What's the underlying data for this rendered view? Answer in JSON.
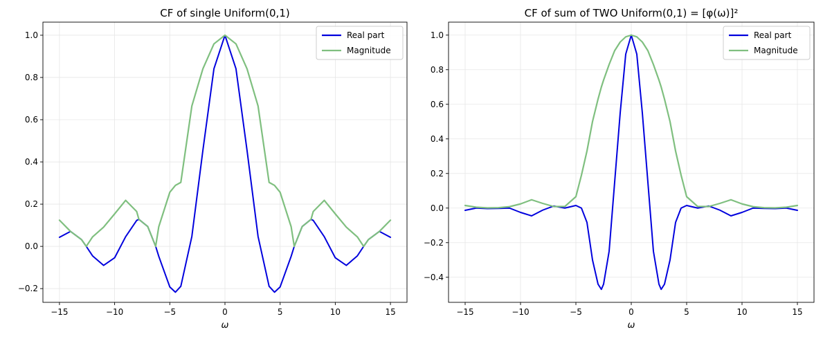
{
  "chart_data": [
    {
      "type": "line",
      "title": "CF of single Uniform(0,1)",
      "xlabel": "ω",
      "ylabel": "",
      "xlim": [
        -16.5,
        16.5
      ],
      "ylim": [
        -0.265,
        1.062
      ],
      "xticks": [
        -15,
        -10,
        -5,
        0,
        5,
        10,
        15
      ],
      "xtick_labels": [
        "−15",
        "−10",
        "−5",
        "0",
        "5",
        "10",
        "15"
      ],
      "yticks": [
        -0.2,
        0,
        0.2,
        0.4,
        0.6,
        0.8,
        1.0
      ],
      "ytick_labels": [
        "−0.2",
        "0.0",
        "0.2",
        "0.4",
        "0.6",
        "0.8",
        "1.0"
      ],
      "grid": true,
      "legend": "top-right",
      "x": [
        -15,
        -14,
        -13,
        -12.57,
        -12,
        -11,
        -10,
        -9,
        -8,
        -7.8,
        -7,
        -6.28,
        -6,
        -5,
        -4.49,
        -4,
        -3,
        -2,
        -1,
        0,
        1,
        2,
        3,
        4,
        4.49,
        5,
        6,
        6.28,
        7,
        7.8,
        8,
        9,
        10,
        11,
        12,
        12.57,
        13,
        14,
        15
      ],
      "series": [
        {
          "name": "Real part",
          "color": "#0000dd",
          "values": [
            0.043,
            0.071,
            0.032,
            0.0,
            -0.045,
            -0.09,
            -0.054,
            0.046,
            0.123,
            0.128,
            0.094,
            0.0,
            -0.047,
            -0.192,
            -0.217,
            -0.189,
            0.047,
            0.455,
            0.841,
            1.0,
            0.841,
            0.455,
            0.047,
            -0.189,
            -0.217,
            -0.192,
            -0.047,
            0.0,
            0.094,
            0.128,
            0.123,
            0.046,
            -0.054,
            -0.09,
            -0.045,
            0.0,
            0.032,
            0.071,
            0.043
          ]
        },
        {
          "name": "Magnitude",
          "color": "#7fbf7f",
          "values": [
            0.124,
            0.071,
            0.032,
            0.0,
            0.045,
            0.091,
            0.154,
            0.218,
            0.165,
            0.128,
            0.094,
            0.0,
            0.093,
            0.256,
            0.289,
            0.303,
            0.665,
            0.841,
            0.959,
            1.0,
            0.959,
            0.841,
            0.665,
            0.303,
            0.289,
            0.256,
            0.093,
            0.0,
            0.094,
            0.128,
            0.165,
            0.218,
            0.154,
            0.091,
            0.045,
            0.0,
            0.032,
            0.071,
            0.124
          ]
        }
      ]
    },
    {
      "type": "line",
      "title": "CF of sum of TWO Uniform(0,1) = [φ(ω)]²",
      "xlabel": "ω",
      "ylabel": "",
      "xlim": [
        -16.5,
        16.5
      ],
      "ylim": [
        -0.545,
        1.075
      ],
      "xticks": [
        -15,
        -10,
        -5,
        0,
        5,
        10,
        15
      ],
      "xtick_labels": [
        "−15",
        "−10",
        "−5",
        "0",
        "5",
        "10",
        "15"
      ],
      "yticks": [
        -0.4,
        -0.2,
        0,
        0.2,
        0.4,
        0.6,
        0.8,
        1.0
      ],
      "ytick_labels": [
        "−0.4",
        "−0.2",
        "0.0",
        "0.2",
        "0.4",
        "0.6",
        "0.8",
        "1.0"
      ],
      "grid": true,
      "legend": "top-right",
      "x": [
        -15,
        -14,
        -13,
        -12,
        -11,
        -10,
        -9,
        -8,
        -7,
        -6,
        -5,
        -4.5,
        -4,
        -3.5,
        -3,
        -2.7,
        -2.5,
        -2,
        -1.5,
        -1,
        -0.5,
        0,
        0.5,
        1,
        1.5,
        2,
        2.5,
        2.7,
        3,
        3.5,
        4,
        4.5,
        5,
        6,
        7,
        8,
        9,
        10,
        11,
        12,
        13,
        14,
        15
      ],
      "series": [
        {
          "name": "Real part",
          "color": "#0000dd",
          "values": [
            -0.013,
            0.0,
            -0.003,
            -0.002,
            0.0,
            -0.025,
            -0.045,
            -0.012,
            0.012,
            0.0,
            0.015,
            0.0,
            -0.083,
            -0.3,
            -0.44,
            -0.47,
            -0.44,
            -0.25,
            0.15,
            0.55,
            0.89,
            1.0,
            0.89,
            0.55,
            0.15,
            -0.25,
            -0.44,
            -0.47,
            -0.44,
            -0.3,
            -0.083,
            0.0,
            0.015,
            0.0,
            0.012,
            -0.012,
            -0.045,
            -0.025,
            0.0,
            -0.002,
            -0.003,
            0.0,
            -0.013
          ]
        },
        {
          "name": "Magnitude",
          "color": "#7fbf7f",
          "values": [
            0.015,
            0.005,
            0.001,
            0.002,
            0.008,
            0.024,
            0.048,
            0.027,
            0.009,
            0.009,
            0.066,
            0.19,
            0.33,
            0.5,
            0.63,
            0.7,
            0.74,
            0.83,
            0.91,
            0.96,
            0.99,
            1.0,
            0.99,
            0.96,
            0.91,
            0.83,
            0.74,
            0.7,
            0.63,
            0.5,
            0.33,
            0.19,
            0.066,
            0.009,
            0.009,
            0.027,
            0.048,
            0.024,
            0.008,
            0.002,
            0.001,
            0.005,
            0.015
          ]
        }
      ]
    }
  ]
}
